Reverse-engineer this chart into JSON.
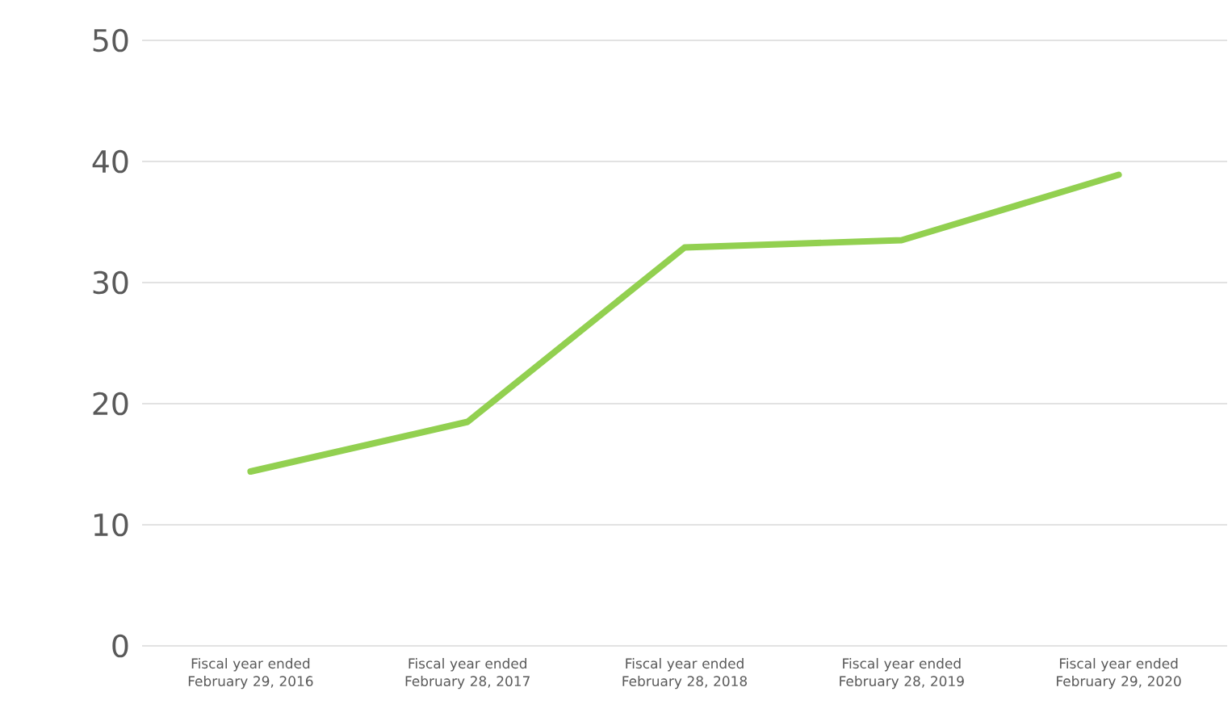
{
  "chart_data": {
    "type": "line",
    "categories": [
      "Fiscal year ended February 29, 2016",
      "Fiscal year ended February 28, 2017",
      "Fiscal year ended February 28, 2018",
      "Fiscal year ended February 28, 2019",
      "Fiscal year ended February 29, 2020"
    ],
    "series": [
      {
        "color": "#92d050",
        "values": [
          14.4,
          18.5,
          32.9,
          33.5,
          38.9
        ]
      }
    ],
    "ylim": [
      0,
      50
    ],
    "yticks": [
      0,
      10,
      20,
      30,
      40,
      50
    ],
    "grid": "y",
    "marker": "none",
    "line_style": "solid"
  }
}
